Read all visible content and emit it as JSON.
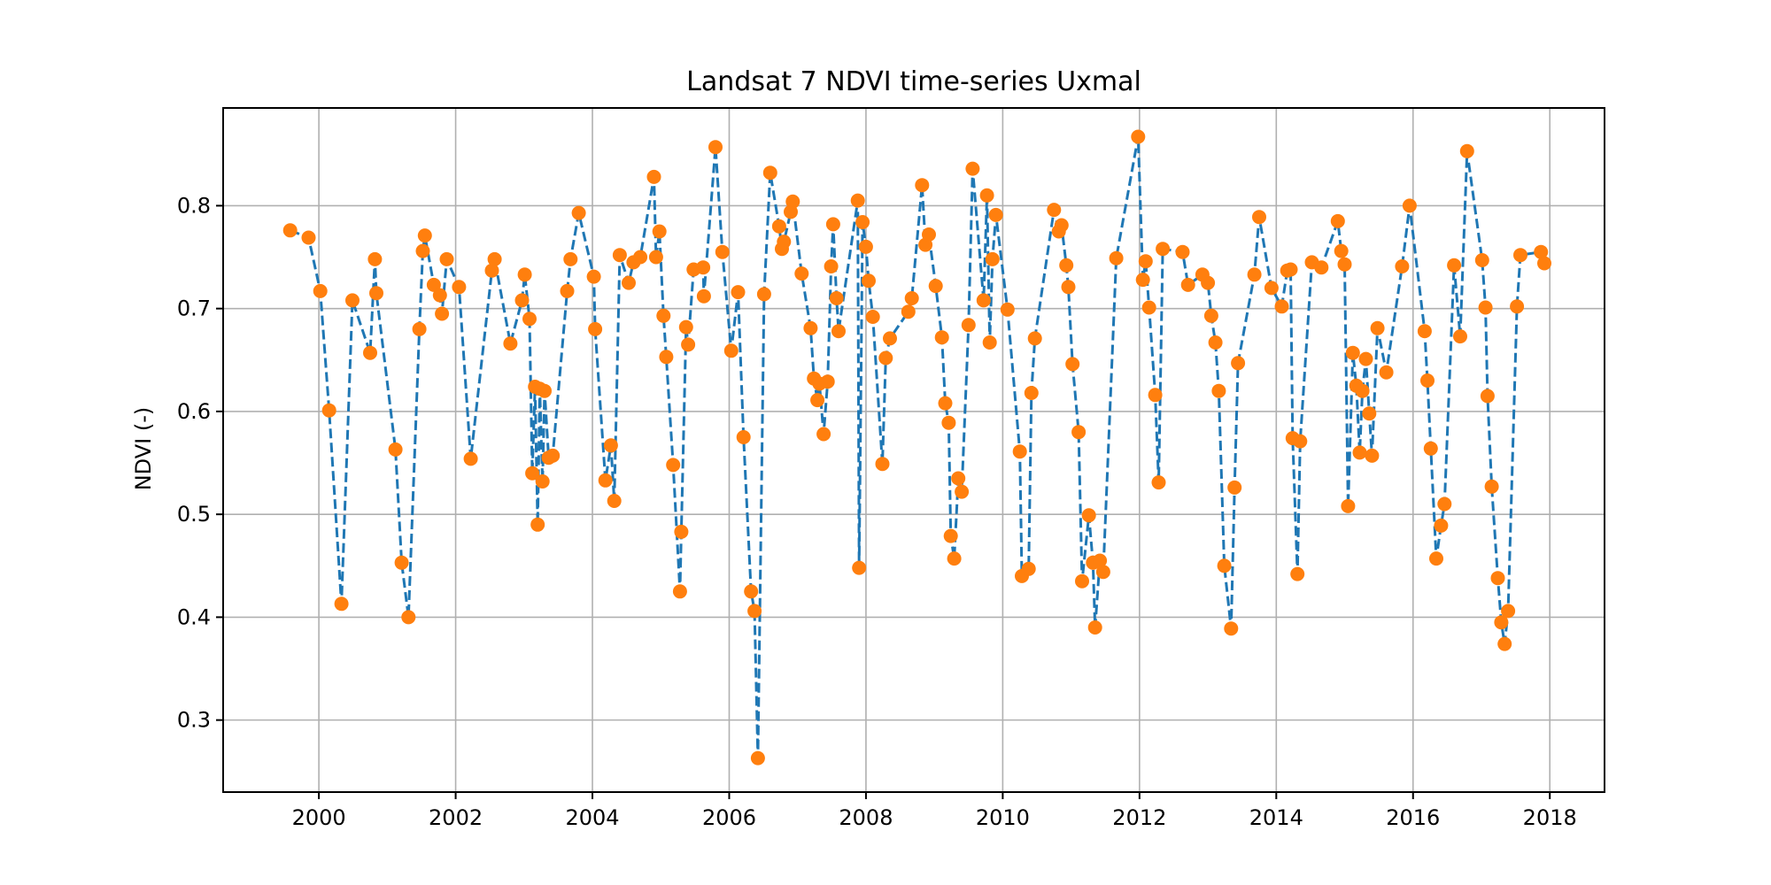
{
  "chart_data": {
    "type": "line",
    "title": "Landsat 7 NDVI time-series Uxmal",
    "xlabel": "",
    "ylabel": "NDVI (-)",
    "x_ticks": [
      "2000",
      "2002",
      "2004",
      "2006",
      "2008",
      "2010",
      "2012",
      "2014",
      "2016",
      "2018"
    ],
    "y_ticks": [
      "0.3",
      "0.4",
      "0.5",
      "0.6",
      "0.7",
      "0.8"
    ],
    "xlim": [
      1998.6,
      2018.8
    ],
    "ylim": [
      0.23,
      0.895
    ],
    "grid": true,
    "colors": {
      "line": "#1f77b4",
      "marker": "#ff7f0e"
    },
    "series": [
      {
        "line_style": "dashed",
        "marker": "circle",
        "points": [
          [
            1999.58,
            0.776
          ],
          [
            1999.85,
            0.769
          ],
          [
            2000.02,
            0.717
          ],
          [
            2000.15,
            0.601
          ],
          [
            2000.33,
            0.413
          ],
          [
            2000.49,
            0.708
          ],
          [
            2000.75,
            0.657
          ],
          [
            2000.82,
            0.748
          ],
          [
            2000.84,
            0.715
          ],
          [
            2001.12,
            0.563
          ],
          [
            2001.21,
            0.453
          ],
          [
            2001.31,
            0.4
          ],
          [
            2001.47,
            0.68
          ],
          [
            2001.52,
            0.756
          ],
          [
            2001.55,
            0.771
          ],
          [
            2001.68,
            0.723
          ],
          [
            2001.77,
            0.713
          ],
          [
            2001.8,
            0.695
          ],
          [
            2001.87,
            0.748
          ],
          [
            2002.05,
            0.721
          ],
          [
            2002.22,
            0.554
          ],
          [
            2002.53,
            0.737
          ],
          [
            2002.57,
            0.748
          ],
          [
            2002.8,
            0.666
          ],
          [
            2002.97,
            0.708
          ],
          [
            2003.01,
            0.733
          ],
          [
            2003.08,
            0.69
          ],
          [
            2003.12,
            0.54
          ],
          [
            2003.16,
            0.624
          ],
          [
            2003.2,
            0.49
          ],
          [
            2003.23,
            0.622
          ],
          [
            2003.27,
            0.532
          ],
          [
            2003.3,
            0.62
          ],
          [
            2003.36,
            0.555
          ],
          [
            2003.42,
            0.557
          ],
          [
            2003.63,
            0.717
          ],
          [
            2003.68,
            0.748
          ],
          [
            2003.8,
            0.793
          ],
          [
            2004.02,
            0.731
          ],
          [
            2004.04,
            0.68
          ],
          [
            2004.19,
            0.533
          ],
          [
            2004.27,
            0.567
          ],
          [
            2004.32,
            0.513
          ],
          [
            2004.4,
            0.752
          ],
          [
            2004.53,
            0.725
          ],
          [
            2004.6,
            0.745
          ],
          [
            2004.7,
            0.75
          ],
          [
            2004.9,
            0.828
          ],
          [
            2004.93,
            0.75
          ],
          [
            2004.98,
            0.775
          ],
          [
            2005.04,
            0.693
          ],
          [
            2005.08,
            0.653
          ],
          [
            2005.18,
            0.548
          ],
          [
            2005.28,
            0.425
          ],
          [
            2005.3,
            0.483
          ],
          [
            2005.37,
            0.682
          ],
          [
            2005.4,
            0.665
          ],
          [
            2005.48,
            0.738
          ],
          [
            2005.62,
            0.74
          ],
          [
            2005.63,
            0.712
          ],
          [
            2005.8,
            0.857
          ],
          [
            2005.9,
            0.755
          ],
          [
            2006.03,
            0.659
          ],
          [
            2006.13,
            0.716
          ],
          [
            2006.21,
            0.575
          ],
          [
            2006.32,
            0.425
          ],
          [
            2006.37,
            0.406
          ],
          [
            2006.42,
            0.263
          ],
          [
            2006.51,
            0.714
          ],
          [
            2006.6,
            0.832
          ],
          [
            2006.73,
            0.78
          ],
          [
            2006.77,
            0.758
          ],
          [
            2006.8,
            0.765
          ],
          [
            2006.9,
            0.794
          ],
          [
            2006.93,
            0.804
          ],
          [
            2007.06,
            0.734
          ],
          [
            2007.19,
            0.681
          ],
          [
            2007.24,
            0.632
          ],
          [
            2007.29,
            0.611
          ],
          [
            2007.32,
            0.627
          ],
          [
            2007.38,
            0.578
          ],
          [
            2007.44,
            0.629
          ],
          [
            2007.49,
            0.741
          ],
          [
            2007.52,
            0.782
          ],
          [
            2007.57,
            0.71
          ],
          [
            2007.6,
            0.678
          ],
          [
            2007.88,
            0.805
          ],
          [
            2007.9,
            0.448
          ],
          [
            2007.95,
            0.784
          ],
          [
            2008.0,
            0.76
          ],
          [
            2008.04,
            0.727
          ],
          [
            2008.1,
            0.692
          ],
          [
            2008.24,
            0.549
          ],
          [
            2008.29,
            0.652
          ],
          [
            2008.35,
            0.671
          ],
          [
            2008.62,
            0.697
          ],
          [
            2008.67,
            0.71
          ],
          [
            2008.82,
            0.82
          ],
          [
            2008.87,
            0.762
          ],
          [
            2008.92,
            0.772
          ],
          [
            2009.02,
            0.722
          ],
          [
            2009.11,
            0.672
          ],
          [
            2009.16,
            0.608
          ],
          [
            2009.21,
            0.589
          ],
          [
            2009.24,
            0.479
          ],
          [
            2009.29,
            0.457
          ],
          [
            2009.35,
            0.535
          ],
          [
            2009.4,
            0.522
          ],
          [
            2009.5,
            0.684
          ],
          [
            2009.56,
            0.836
          ],
          [
            2009.72,
            0.708
          ],
          [
            2009.77,
            0.81
          ],
          [
            2009.81,
            0.667
          ],
          [
            2009.85,
            0.748
          ],
          [
            2009.9,
            0.791
          ],
          [
            2010.07,
            0.699
          ],
          [
            2010.25,
            0.561
          ],
          [
            2010.28,
            0.44
          ],
          [
            2010.38,
            0.447
          ],
          [
            2010.42,
            0.618
          ],
          [
            2010.47,
            0.671
          ],
          [
            2010.75,
            0.796
          ],
          [
            2010.82,
            0.775
          ],
          [
            2010.86,
            0.781
          ],
          [
            2010.93,
            0.742
          ],
          [
            2010.96,
            0.721
          ],
          [
            2011.02,
            0.646
          ],
          [
            2011.11,
            0.58
          ],
          [
            2011.16,
            0.435
          ],
          [
            2011.26,
            0.499
          ],
          [
            2011.32,
            0.453
          ],
          [
            2011.35,
            0.39
          ],
          [
            2011.42,
            0.455
          ],
          [
            2011.47,
            0.444
          ],
          [
            2011.66,
            0.749
          ],
          [
            2011.98,
            0.867
          ],
          [
            2012.05,
            0.728
          ],
          [
            2012.09,
            0.746
          ],
          [
            2012.14,
            0.701
          ],
          [
            2012.23,
            0.616
          ],
          [
            2012.28,
            0.531
          ],
          [
            2012.34,
            0.758
          ],
          [
            2012.63,
            0.755
          ],
          [
            2012.71,
            0.723
          ],
          [
            2012.92,
            0.733
          ],
          [
            2013.0,
            0.725
          ],
          [
            2013.05,
            0.693
          ],
          [
            2013.11,
            0.667
          ],
          [
            2013.16,
            0.62
          ],
          [
            2013.24,
            0.45
          ],
          [
            2013.34,
            0.389
          ],
          [
            2013.39,
            0.526
          ],
          [
            2013.44,
            0.647
          ],
          [
            2013.68,
            0.733
          ],
          [
            2013.75,
            0.789
          ],
          [
            2013.93,
            0.72
          ],
          [
            2014.08,
            0.702
          ],
          [
            2014.16,
            0.737
          ],
          [
            2014.21,
            0.738
          ],
          [
            2014.24,
            0.574
          ],
          [
            2014.31,
            0.442
          ],
          [
            2014.35,
            0.571
          ],
          [
            2014.52,
            0.745
          ],
          [
            2014.66,
            0.74
          ],
          [
            2014.9,
            0.785
          ],
          [
            2014.95,
            0.756
          ],
          [
            2015.0,
            0.743
          ],
          [
            2015.05,
            0.508
          ],
          [
            2015.12,
            0.657
          ],
          [
            2015.17,
            0.625
          ],
          [
            2015.22,
            0.56
          ],
          [
            2015.26,
            0.62
          ],
          [
            2015.31,
            0.651
          ],
          [
            2015.36,
            0.598
          ],
          [
            2015.4,
            0.557
          ],
          [
            2015.48,
            0.681
          ],
          [
            2015.61,
            0.638
          ],
          [
            2015.84,
            0.741
          ],
          [
            2015.95,
            0.8
          ],
          [
            2016.17,
            0.678
          ],
          [
            2016.21,
            0.63
          ],
          [
            2016.26,
            0.564
          ],
          [
            2016.34,
            0.457
          ],
          [
            2016.41,
            0.489
          ],
          [
            2016.46,
            0.51
          ],
          [
            2016.6,
            0.742
          ],
          [
            2016.69,
            0.673
          ],
          [
            2016.79,
            0.853
          ],
          [
            2017.01,
            0.747
          ],
          [
            2017.06,
            0.701
          ],
          [
            2017.09,
            0.615
          ],
          [
            2017.15,
            0.527
          ],
          [
            2017.24,
            0.438
          ],
          [
            2017.29,
            0.395
          ],
          [
            2017.34,
            0.374
          ],
          [
            2017.39,
            0.406
          ],
          [
            2017.52,
            0.702
          ],
          [
            2017.57,
            0.752
          ],
          [
            2017.87,
            0.755
          ],
          [
            2017.92,
            0.744
          ]
        ]
      }
    ]
  }
}
